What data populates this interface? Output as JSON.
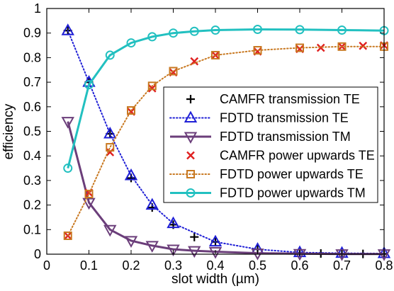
{
  "chart_data": {
    "type": "line",
    "xlabel": "slot width (µm)",
    "ylabel": "efficiency",
    "xlim": [
      0,
      0.8
    ],
    "ylim": [
      0,
      1
    ],
    "xticks": [
      "0",
      "0.1",
      "0.2",
      "0.3",
      "0.4",
      "0.5",
      "0.6",
      "0.7",
      "0.8"
    ],
    "yticks": [
      "0",
      "0.1",
      "0.2",
      "0.3",
      "0.4",
      "0.5",
      "0.6",
      "0.7",
      "0.8",
      "0.9",
      "1"
    ],
    "grid": false,
    "legend_position": "right",
    "series": [
      {
        "name": "CAMFR transmission TE",
        "color": "#000000",
        "marker": "plus",
        "line": "none",
        "x": [
          0.05,
          0.1,
          0.15,
          0.2,
          0.25,
          0.3,
          0.35,
          0.4,
          0.5,
          0.6,
          0.65,
          0.7,
          0.75,
          0.8
        ],
        "y": [
          0.91,
          0.7,
          0.49,
          0.31,
          0.19,
          0.12,
          0.07,
          0.05,
          0.02,
          0.005,
          0.003,
          0.002,
          0.001,
          0.001
        ]
      },
      {
        "name": "FDTD transmission TE",
        "color": "#1f1fd6",
        "marker": "triangle",
        "line": "dotted",
        "x": [
          0.05,
          0.1,
          0.15,
          0.2,
          0.25,
          0.3,
          0.4,
          0.5,
          0.6,
          0.7,
          0.8
        ],
        "y": [
          0.91,
          0.7,
          0.49,
          0.32,
          0.2,
          0.125,
          0.05,
          0.02,
          0.007,
          0.004,
          0.003
        ]
      },
      {
        "name": "FDTD transmission TM",
        "color": "#6b3e7a",
        "marker": "triangle-down",
        "line": "solid",
        "x": [
          0.05,
          0.1,
          0.15,
          0.2,
          0.25,
          0.3,
          0.35,
          0.4,
          0.5,
          0.6,
          0.7,
          0.8
        ],
        "y": [
          0.54,
          0.21,
          0.1,
          0.055,
          0.035,
          0.02,
          0.014,
          0.01,
          0.004,
          0.002,
          0.001,
          0.001
        ]
      },
      {
        "name": "CAMFR power upwards TE",
        "color": "#e02020",
        "marker": "x",
        "line": "none",
        "x": [
          0.05,
          0.1,
          0.15,
          0.2,
          0.25,
          0.3,
          0.35,
          0.4,
          0.5,
          0.6,
          0.65,
          0.7,
          0.75,
          0.8
        ],
        "y": [
          0.075,
          0.25,
          0.415,
          0.58,
          0.675,
          0.74,
          0.785,
          0.81,
          0.825,
          0.835,
          0.84,
          0.845,
          0.848,
          0.85
        ]
      },
      {
        "name": "FDTD power upwards TE",
        "color": "#c87820",
        "marker": "square",
        "line": "dotted",
        "x": [
          0.05,
          0.1,
          0.15,
          0.2,
          0.25,
          0.3,
          0.4,
          0.5,
          0.6,
          0.7,
          0.8
        ],
        "y": [
          0.075,
          0.245,
          0.435,
          0.585,
          0.685,
          0.745,
          0.81,
          0.83,
          0.84,
          0.845,
          0.845
        ]
      },
      {
        "name": "FDTD power upwards TM",
        "color": "#22c0c0",
        "marker": "circle",
        "line": "solid",
        "x": [
          0.05,
          0.1,
          0.15,
          0.2,
          0.25,
          0.3,
          0.35,
          0.4,
          0.5,
          0.6,
          0.7,
          0.8
        ],
        "y": [
          0.35,
          0.69,
          0.81,
          0.86,
          0.885,
          0.9,
          0.907,
          0.912,
          0.915,
          0.914,
          0.912,
          0.91
        ]
      }
    ]
  }
}
